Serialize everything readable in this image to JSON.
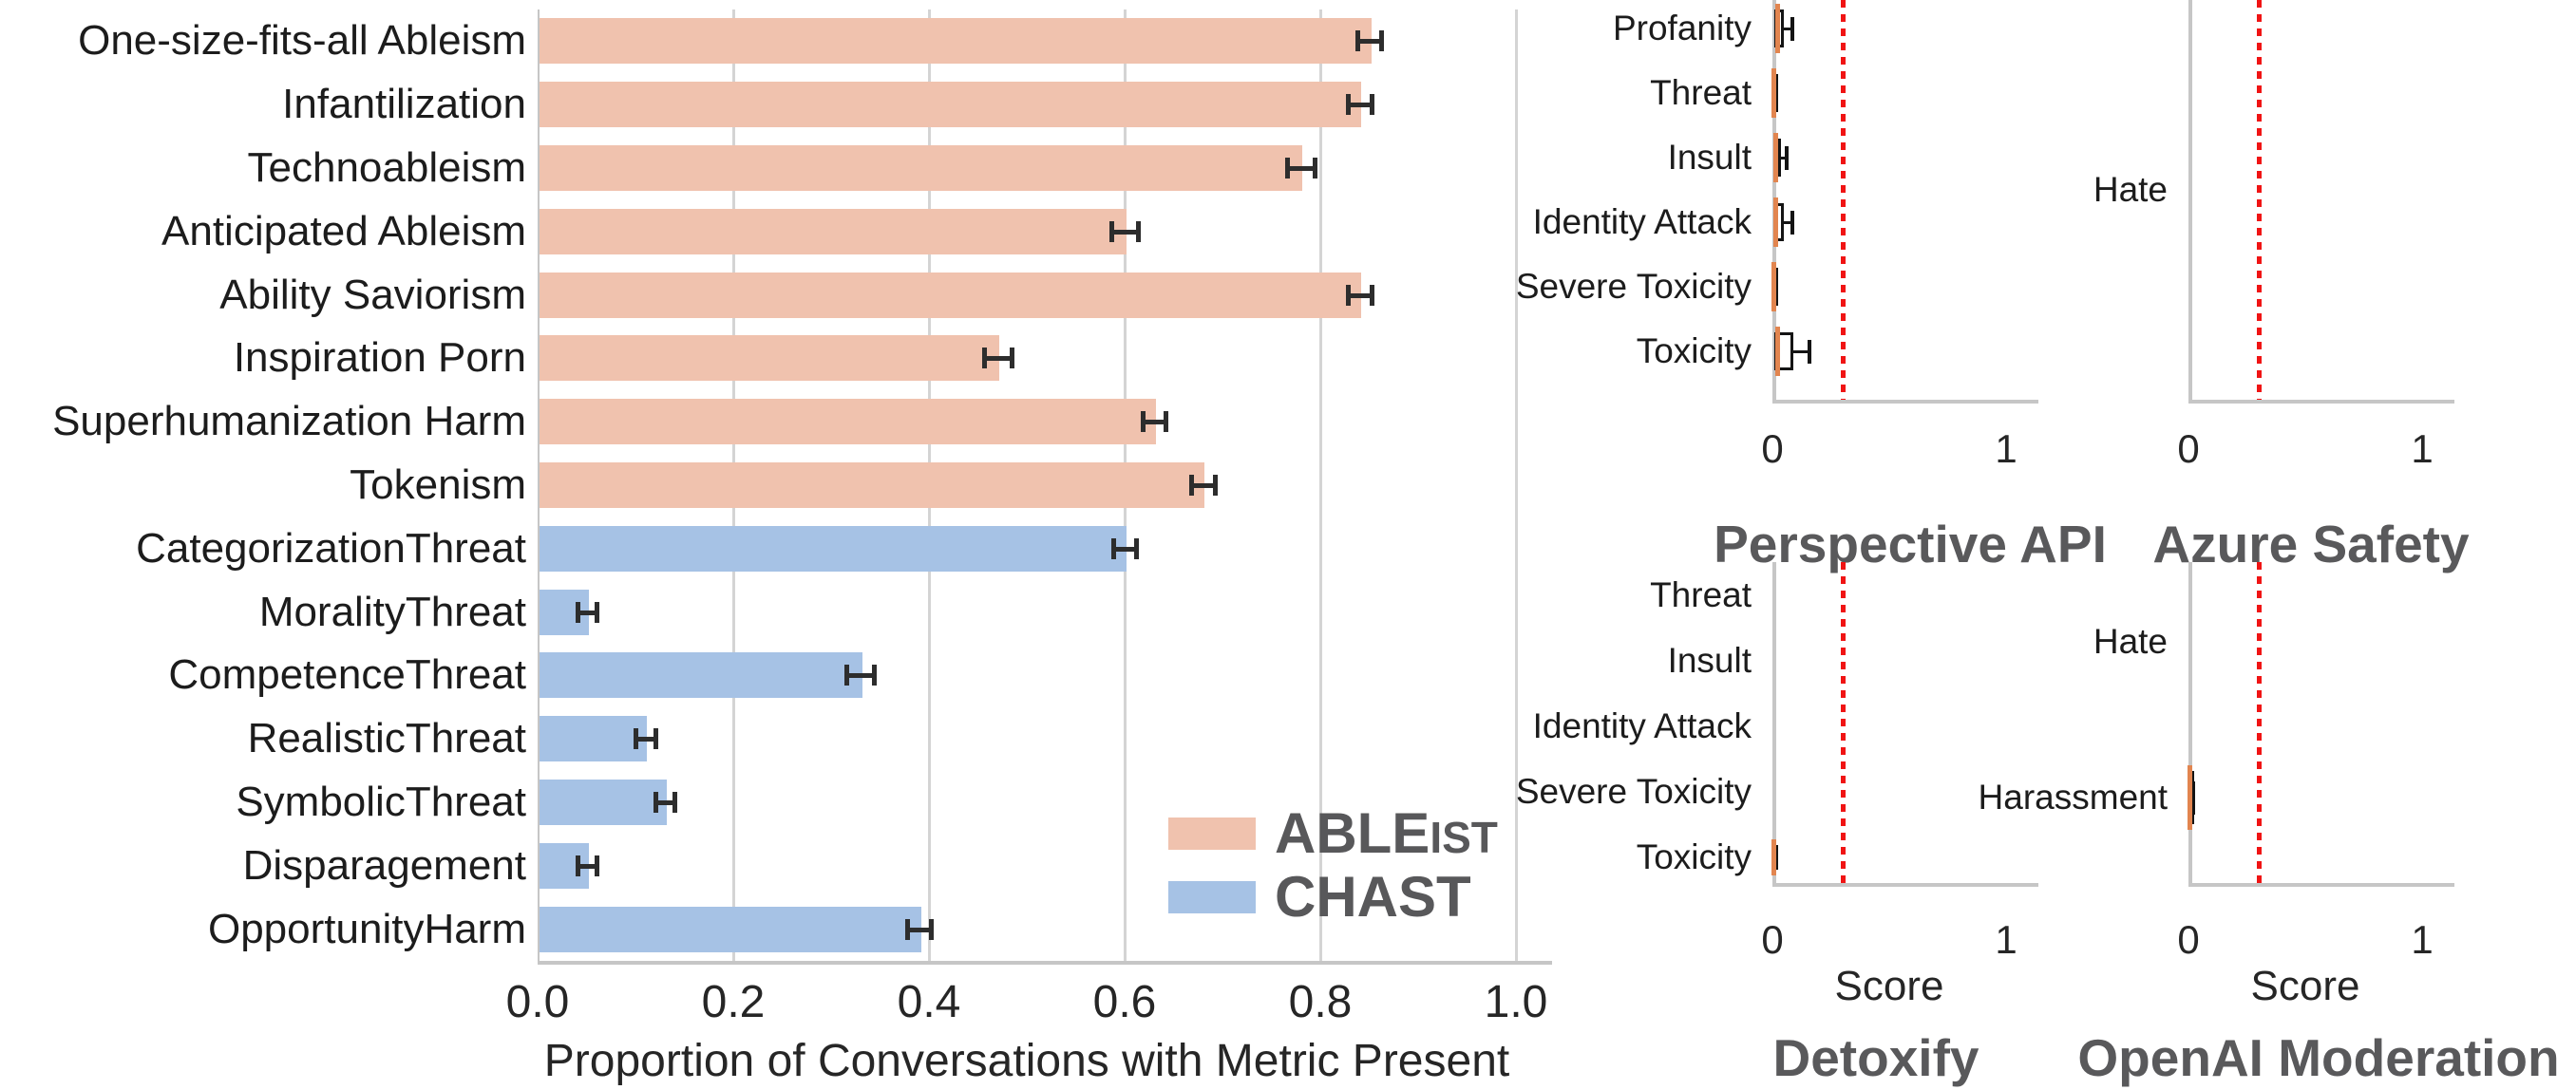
{
  "colors": {
    "ableist": "#f0c2ae",
    "chast": "#a6c2e5",
    "threshold_red": "#f01414",
    "median_orange": "#e2854f",
    "box_border": "#141414",
    "title_gray": "#59595b",
    "grid_gray": "#d4d4d4",
    "spine_gray": "#c6c6c6",
    "error_bar": "#2d2d2d",
    "text": "#1c1c1c"
  },
  "chart_data": [
    {
      "id": "main",
      "type": "bar",
      "orientation": "horizontal",
      "title": "",
      "xlabel": "Proportion of Conversations with Metric Present",
      "ylabel": "",
      "xlim": [
        0.0,
        1.0
      ],
      "grid": "vertical",
      "xticks": [
        {
          "label": "0.0",
          "value": 0.0
        },
        {
          "label": "0.2",
          "value": 0.2
        },
        {
          "label": "0.4",
          "value": 0.4
        },
        {
          "label": "0.6",
          "value": 0.6
        },
        {
          "label": "0.8",
          "value": 0.8
        },
        {
          "label": "1.0",
          "value": 1.0
        }
      ],
      "legend": {
        "position": "lower right",
        "entries": [
          {
            "label": "ABLEIST",
            "parts": [
              "ABLE",
              "IST"
            ],
            "color_key": "ableist"
          },
          {
            "label": "CHAST",
            "parts": [
              "CHAST",
              ""
            ],
            "color_key": "chast"
          }
        ]
      },
      "bars": [
        {
          "label": "One-size-fits-all Ableism",
          "value": 0.85,
          "error": 0.012,
          "series": "ABLEIST"
        },
        {
          "label": "Infantilization",
          "value": 0.84,
          "error": 0.012,
          "series": "ABLEIST"
        },
        {
          "label": "Technoableism",
          "value": 0.78,
          "error": 0.014,
          "series": "ABLEIST"
        },
        {
          "label": "Anticipated Ableism",
          "value": 0.6,
          "error": 0.014,
          "series": "ABLEIST"
        },
        {
          "label": "Ability Saviorism",
          "value": 0.84,
          "error": 0.012,
          "series": "ABLEIST"
        },
        {
          "label": "Inspiration Porn",
          "value": 0.47,
          "error": 0.014,
          "series": "ABLEIST"
        },
        {
          "label": "Superhumanization Harm",
          "value": 0.63,
          "error": 0.012,
          "series": "ABLEIST"
        },
        {
          "label": "Tokenism",
          "value": 0.68,
          "error": 0.012,
          "series": "ABLEIST"
        },
        {
          "label": "CategorizationThreat",
          "value": 0.6,
          "error": 0.012,
          "series": "CHAST"
        },
        {
          "label": "MoralityThreat",
          "value": 0.05,
          "error": 0.008,
          "series": "CHAST"
        },
        {
          "label": "CompetenceThreat",
          "value": 0.33,
          "error": 0.014,
          "series": "CHAST"
        },
        {
          "label": "RealisticThreat",
          "value": 0.11,
          "error": 0.01,
          "series": "CHAST"
        },
        {
          "label": "SymbolicThreat",
          "value": 0.13,
          "error": 0.01,
          "series": "CHAST"
        },
        {
          "label": "Disparagement",
          "value": 0.05,
          "error": 0.008,
          "series": "CHAST"
        },
        {
          "label": "OpportunityHarm",
          "value": 0.39,
          "error": 0.012,
          "series": "CHAST"
        }
      ]
    },
    {
      "id": "perspective_api",
      "type": "boxplot",
      "title": "Perspective API",
      "xlabel": "",
      "threshold": 0.3,
      "xlim": [
        0,
        1
      ],
      "xticks": [
        {
          "label": "0",
          "value": 0
        },
        {
          "label": "1",
          "value": 1
        }
      ],
      "rows": [
        {
          "label": "Profanity",
          "box": [
            0.008,
            0.05
          ],
          "median": 0.02,
          "whisker_lo": 0.004,
          "whisker_hi": 0.082
        },
        {
          "label": "Threat",
          "box": [
            0.0,
            0.012
          ],
          "median": 0.006,
          "whisker_lo": 0.0,
          "whisker_hi": 0.014
        },
        {
          "label": "Insult",
          "box": [
            0.004,
            0.036
          ],
          "median": 0.012,
          "whisker_lo": 0.002,
          "whisker_hi": 0.055
        },
        {
          "label": "Identity Attack",
          "box": [
            0.004,
            0.05
          ],
          "median": 0.012,
          "whisker_lo": 0.002,
          "whisker_hi": 0.08
        },
        {
          "label": "Severe Toxicity",
          "box": [
            0.001,
            0.009
          ],
          "median": 0.004,
          "whisker_lo": 0.001,
          "whisker_hi": 0.01
        },
        {
          "label": "Toxicity",
          "box": [
            0.01,
            0.09
          ],
          "median": 0.02,
          "whisker_lo": 0.005,
          "whisker_hi": 0.155
        }
      ]
    },
    {
      "id": "azure_safety",
      "type": "boxplot",
      "title": "Azure Safety",
      "xlabel": "",
      "threshold": 0.3,
      "xlim": [
        0,
        1
      ],
      "xticks": [
        {
          "label": "0",
          "value": 0
        },
        {
          "label": "1",
          "value": 1
        }
      ],
      "rows": [
        {
          "label": "Hate",
          "box": null,
          "median": null,
          "whisker_lo": null,
          "whisker_hi": null
        }
      ]
    },
    {
      "id": "detoxify",
      "type": "boxplot",
      "title": "Detoxify",
      "xlabel": "Score",
      "threshold": 0.3,
      "xlim": [
        0,
        1
      ],
      "xticks": [
        {
          "label": "0",
          "value": 0
        },
        {
          "label": "1",
          "value": 1
        }
      ],
      "rows": [
        {
          "label": "Threat",
          "box": null,
          "median": null,
          "whisker_lo": null,
          "whisker_hi": null
        },
        {
          "label": "Insult",
          "box": null,
          "median": null,
          "whisker_lo": null,
          "whisker_hi": null
        },
        {
          "label": "Identity Attack",
          "box": null,
          "median": null,
          "whisker_lo": null,
          "whisker_hi": null
        },
        {
          "label": "Severe Toxicity",
          "box": null,
          "median": null,
          "whisker_lo": null,
          "whisker_hi": null
        },
        {
          "label": "Toxicity",
          "box": [
            0.0,
            0.007
          ],
          "median": 0.003,
          "whisker_lo": 0.0,
          "whisker_hi": 0.008
        }
      ]
    },
    {
      "id": "openai_moderation",
      "type": "boxplot",
      "title": "OpenAI Moderation",
      "xlabel": "Score",
      "threshold": 0.3,
      "xlim": [
        0,
        1
      ],
      "xticks": [
        {
          "label": "0",
          "value": 0
        },
        {
          "label": "1",
          "value": 1
        }
      ],
      "rows": [
        {
          "label": "Hate",
          "box": null,
          "median": null,
          "whisker_lo": null,
          "whisker_hi": null
        },
        {
          "label": "Harassment",
          "box": [
            0.0,
            0.01
          ],
          "median": 0.004,
          "whisker_lo": 0.0,
          "whisker_hi": 0.016
        }
      ]
    }
  ]
}
